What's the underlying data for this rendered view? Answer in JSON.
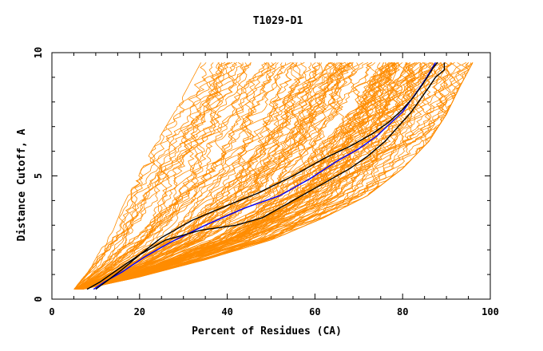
{
  "chart_data": {
    "type": "line",
    "title": "T1029-D1",
    "xlabel": "Percent of Residues (CA)",
    "ylabel": "Distance Cutoff, A",
    "xlim": [
      0,
      100
    ],
    "ylim": [
      0,
      10
    ],
    "x_ticks": [
      "0",
      "20",
      "40",
      "60",
      "80",
      "100"
    ],
    "y_ticks": [
      "0",
      "5",
      "10"
    ],
    "grid": false,
    "background_curves": {
      "color": "#ff8c00",
      "count": 140,
      "description_of_range": "orange curves spanning from left envelope to right envelope",
      "left_envelope": {
        "x": [
          5,
          9,
          11,
          14,
          16,
          19,
          22,
          25,
          28,
          31,
          34
        ],
        "y": [
          0.4,
          1.3,
          2.0,
          2.8,
          3.7,
          4.8,
          5.8,
          6.7,
          7.6,
          8.6,
          9.6
        ]
      },
      "right_envelope": {
        "x": [
          7,
          20,
          35,
          50,
          62,
          72,
          80,
          86,
          90,
          93,
          96
        ],
        "y": [
          0.4,
          0.9,
          1.6,
          2.4,
          3.3,
          4.2,
          5.3,
          6.4,
          7.5,
          8.6,
          9.6
        ]
      }
    },
    "series": [
      {
        "color": "#0000ff",
        "x": [
          9.5,
          12,
          16,
          21,
          27,
          35,
          44,
          52,
          59,
          65,
          70,
          74,
          77,
          80,
          82,
          84,
          85.5,
          86.5,
          87.5
        ],
        "y": [
          0.4,
          0.7,
          1.1,
          1.7,
          2.3,
          3.0,
          3.7,
          4.2,
          4.9,
          5.6,
          6.1,
          6.6,
          7.1,
          7.6,
          8.1,
          8.6,
          9.0,
          9.3,
          9.6
        ]
      },
      {
        "color": "#000000",
        "x": [
          10,
          13,
          16,
          20,
          25,
          32,
          40,
          47,
          55,
          62,
          68,
          73,
          77,
          80,
          82.5,
          84.5,
          86,
          87,
          88
        ],
        "y": [
          0.4,
          0.8,
          1.2,
          1.8,
          2.5,
          3.2,
          3.8,
          4.3,
          5.0,
          5.7,
          6.2,
          6.7,
          7.2,
          7.7,
          8.2,
          8.7,
          9.1,
          9.4,
          9.6
        ]
      },
      {
        "color": "#000000",
        "x": [
          8,
          11,
          15,
          20,
          26,
          34,
          42,
          48,
          52,
          58,
          63,
          68,
          72,
          76,
          79,
          82,
          84,
          86,
          87.5,
          89.5,
          89.5
        ],
        "y": [
          0.4,
          0.7,
          1.2,
          1.8,
          2.4,
          2.8,
          3.0,
          3.3,
          3.7,
          4.3,
          4.8,
          5.3,
          5.8,
          6.4,
          7.0,
          7.6,
          8.1,
          8.6,
          9.0,
          9.3,
          9.6
        ]
      }
    ]
  }
}
